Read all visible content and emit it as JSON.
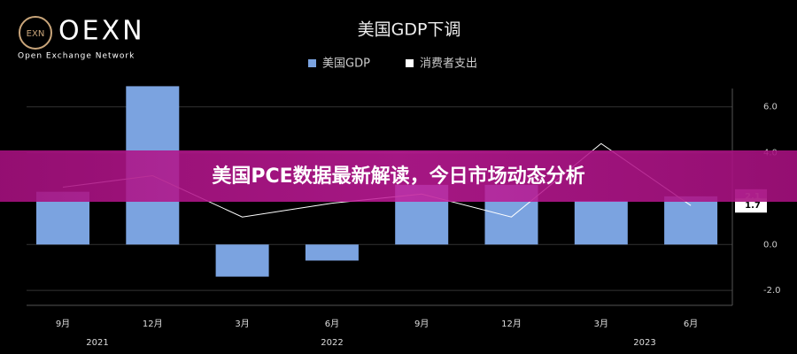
{
  "logo": {
    "name": "OEXN",
    "icon": "EXN",
    "tagline": "Open Exchange Network"
  },
  "banner": {
    "text": "美国PCE数据最新解读，今日市场动态分析"
  },
  "chart_data": {
    "type": "bar",
    "title": "美国GDP下调",
    "categories": [
      "9月",
      "12月",
      "3月",
      "6月",
      "9月",
      "12月",
      "3月",
      "6月"
    ],
    "year_groups": [
      "2021",
      "2022",
      "2023"
    ],
    "series": [
      {
        "name": "美国GDP",
        "type": "bar",
        "color": "#7ba3e0",
        "values": [
          2.3,
          6.9,
          -1.4,
          -0.7,
          2.6,
          2.6,
          1.9,
          2.1
        ]
      },
      {
        "name": "消费者支出",
        "type": "line",
        "color": "#ffffff",
        "values": [
          2.5,
          3.0,
          1.2,
          1.8,
          2.2,
          1.2,
          4.4,
          1.7
        ]
      }
    ],
    "ylim": [
      -2.65,
      6.8
    ],
    "yticks": [
      {
        "value": -2,
        "label": "-2.0"
      },
      {
        "value": 0,
        "label": "0.0"
      },
      {
        "value": 4,
        "label": "4.0"
      },
      {
        "value": 6,
        "label": "6.0"
      }
    ],
    "grid": true,
    "legend": "top"
  }
}
